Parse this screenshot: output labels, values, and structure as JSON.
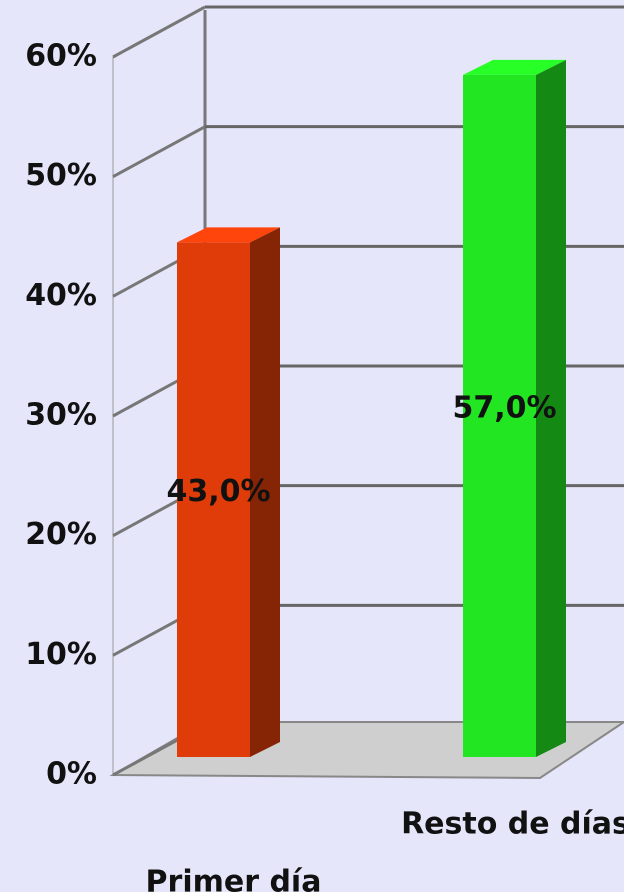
{
  "chart_data": {
    "type": "bar3d",
    "categories": [
      "Primer día",
      "Resto de días"
    ],
    "values": [
      43,
      57
    ],
    "value_labels": [
      "43,0%",
      "57,0%"
    ],
    "colors": [
      "#e03c0a",
      "#22e622"
    ],
    "ylim": [
      0,
      60
    ],
    "yticks": [
      {
        "value": 0,
        "label": "0%"
      },
      {
        "value": 10,
        "label": "10%"
      },
      {
        "value": 20,
        "label": "20%"
      },
      {
        "value": 30,
        "label": "30%"
      },
      {
        "value": 40,
        "label": "40%"
      },
      {
        "value": 50,
        "label": "50%"
      },
      {
        "value": 60,
        "label": "60%"
      }
    ],
    "grid": true
  }
}
